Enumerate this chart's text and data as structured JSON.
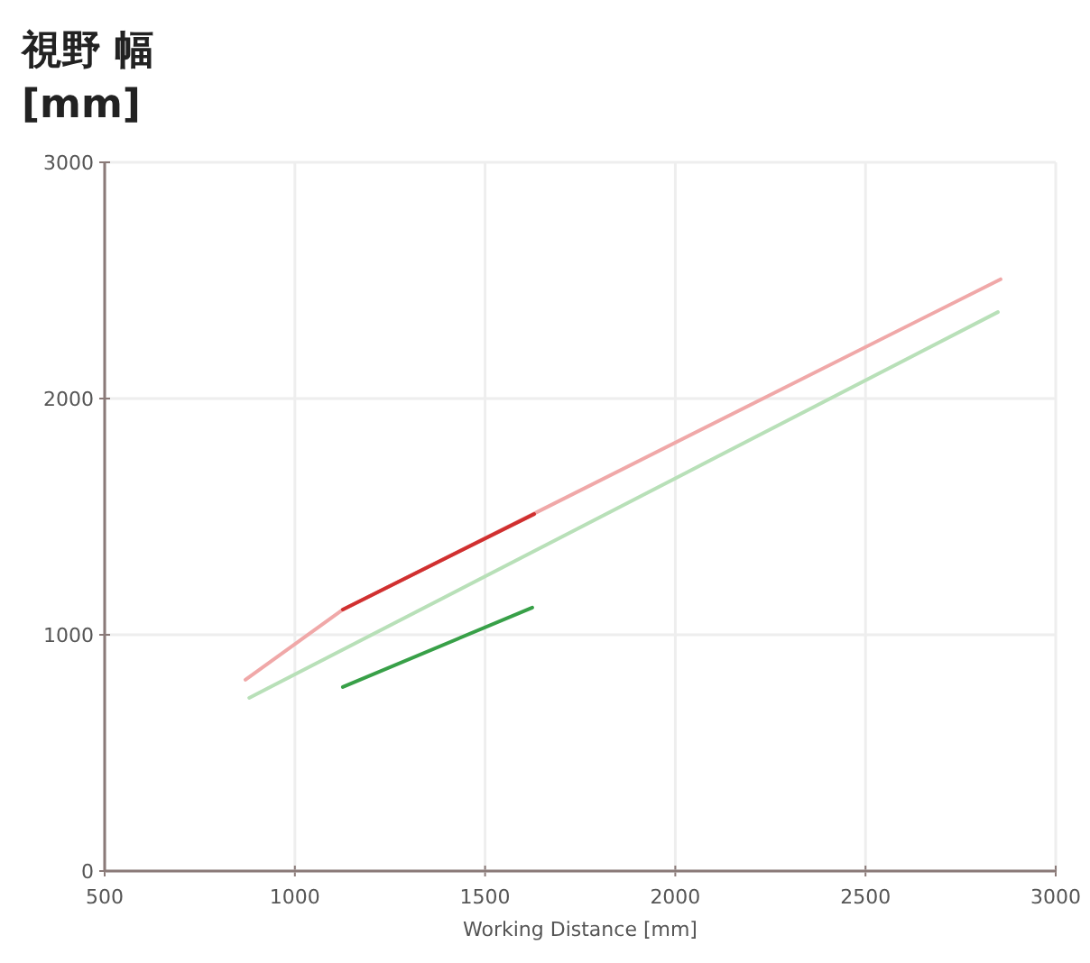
{
  "chart_data": {
    "type": "line",
    "ylabel": "視野 幅 [mm]",
    "xlabel": "Working Distance [mm]",
    "xlim": [
      500,
      3000
    ],
    "xticks": [
      500,
      1000,
      1500,
      2000,
      2500,
      3000
    ],
    "ylim": [
      0,
      3000
    ],
    "yticks": [
      0,
      1000,
      2000,
      3000
    ],
    "grid": true,
    "series": [
      {
        "color": "#f0a8a8",
        "x": [
          870,
          1125,
          1625,
          2855
        ],
        "values": [
          810,
          1105,
          1510,
          2505
        ]
      },
      {
        "color": "#d03030",
        "x": [
          1126,
          1629
        ],
        "values": [
          1107,
          1511
        ]
      },
      {
        "color": "#b8e0b8",
        "x": [
          880,
          2848
        ],
        "values": [
          733,
          2366
        ]
      },
      {
        "color": "#38a048",
        "x": [
          1126,
          1624
        ],
        "values": [
          779,
          1115
        ]
      }
    ]
  }
}
